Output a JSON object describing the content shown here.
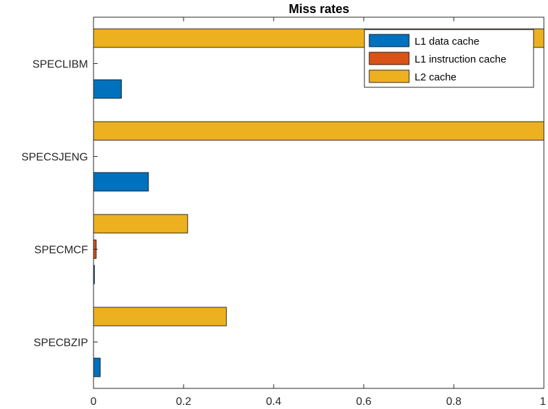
{
  "chart_data": {
    "type": "bar",
    "orientation": "horizontal",
    "title": "Miss rates",
    "xlabel": "",
    "ylabel": "",
    "xlim": [
      0,
      1
    ],
    "xticks": [
      "0",
      "0.2",
      "0.4",
      "0.6",
      "0.8",
      "1"
    ],
    "xtick_values": [
      0,
      0.2,
      0.4,
      0.6,
      0.8,
      1
    ],
    "categories": [
      "SPECBZIP",
      "SPECMCF",
      "SPECSJENG",
      "SPECLIBM"
    ],
    "series": [
      {
        "name": "L1 data cache",
        "color": "#0072BD",
        "values": [
          0.015,
          0.002,
          0.122,
          0.062
        ]
      },
      {
        "name": "L1 instruction cache",
        "color": "#D95319",
        "values": [
          0.0,
          0.006,
          0.0,
          0.0
        ]
      },
      {
        "name": "L2 cache",
        "color": "#EDB120",
        "values": [
          0.295,
          0.209,
          1.0,
          1.0
        ]
      }
    ],
    "legend_position": "top-right",
    "grid": false
  }
}
